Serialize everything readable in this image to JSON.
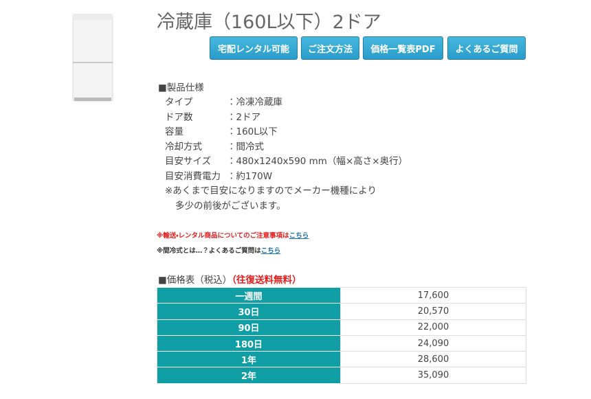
{
  "header": {
    "title": "冷蔵庫（160L以下）2ドア"
  },
  "buttons": [
    "宅配レンタル可能",
    "ご注文方法",
    "価格一覧表PDF",
    "よくあるご質問"
  ],
  "spec": {
    "heading": "■製品仕様",
    "rows": [
      [
        "タイプ",
        "：冷凍冷蔵庫"
      ],
      [
        "ドア数",
        "：2ドア"
      ],
      [
        "容量",
        "：160L以下"
      ],
      [
        "冷却方式",
        "：間冷式"
      ],
      [
        "目安サイズ",
        "：480x1240x590 mm（幅×高さ×奥行）"
      ],
      [
        "目安消費電力",
        "：約170W"
      ]
    ],
    "note": [
      "※あくまで目安になりますのでメーカー機種により",
      "多少の前後がございます。"
    ]
  },
  "notices": [
    {
      "text": "※輸送・レンタル商品についてのご注意事項は",
      "link": "こちら"
    },
    {
      "text": "※間冷式とは…？よくあるご質問は",
      "link": "こちら"
    }
  ],
  "price_table": {
    "heading": "■価格表（税込）",
    "note": "（往復送料無料）",
    "rows": [
      [
        "一週間",
        "17,600"
      ],
      [
        "30日",
        "20,570"
      ],
      [
        "90日",
        "22,000"
      ],
      [
        "180日",
        "24,090"
      ],
      [
        "1年",
        "28,600"
      ],
      [
        "2年",
        "35,090"
      ]
    ]
  }
}
